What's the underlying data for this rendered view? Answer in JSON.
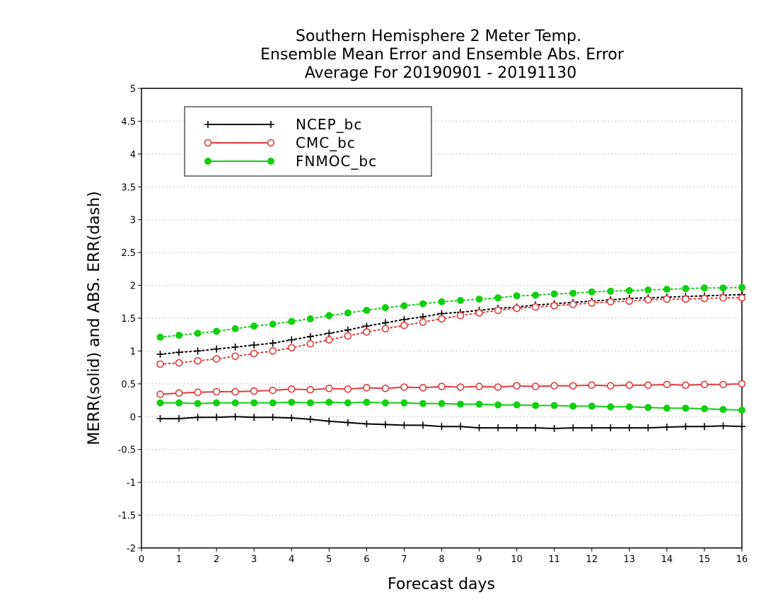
{
  "chart_data": {
    "type": "line",
    "title": [
      "Southern Hemisphere 2 Meter Temp.",
      "Ensemble Mean Error and Ensemble Abs. Error",
      "Average For 20190901 - 20191130"
    ],
    "xlabel": "Forecast days",
    "ylabel": "MERR(solid) and ABS. ERR(dash)",
    "xlim": [
      0,
      16
    ],
    "ylim": [
      -2,
      5
    ],
    "x_ticks": [
      "0",
      "1",
      "2",
      "3",
      "4",
      "5",
      "6",
      "7",
      "8",
      "9",
      "10",
      "11",
      "12",
      "13",
      "14",
      "15",
      "16"
    ],
    "y_ticks": [
      "-2",
      "-1.5",
      "-1",
      "-0.5",
      "0",
      "0.5",
      "1",
      "1.5",
      "2",
      "2.5",
      "3",
      "3.5",
      "4",
      "4.5",
      "5"
    ],
    "grid": "horizontal-dotted",
    "legend_position": "top-left",
    "x": [
      0.5,
      1,
      1.5,
      2,
      2.5,
      3,
      3.5,
      4,
      4.5,
      5,
      5.5,
      6,
      6.5,
      7,
      7.5,
      8,
      8.5,
      9,
      9.5,
      10,
      10.5,
      11,
      11.5,
      12,
      12.5,
      13,
      13.5,
      14,
      14.5,
      15,
      15.5,
      16
    ],
    "series": [
      {
        "name": "NCEP_bc",
        "color": "#000000",
        "marker": "plus",
        "merr": [
          -0.03,
          -0.03,
          -0.01,
          -0.01,
          0.0,
          -0.01,
          -0.01,
          -0.02,
          -0.04,
          -0.07,
          -0.09,
          -0.11,
          -0.12,
          -0.13,
          -0.13,
          -0.15,
          -0.15,
          -0.17,
          -0.17,
          -0.17,
          -0.17,
          -0.18,
          -0.17,
          -0.17,
          -0.17,
          -0.17,
          -0.17,
          -0.16,
          -0.15,
          -0.15,
          -0.14,
          -0.15
        ],
        "abs_err": [
          0.95,
          0.98,
          1.0,
          1.03,
          1.06,
          1.09,
          1.12,
          1.17,
          1.22,
          1.27,
          1.32,
          1.38,
          1.43,
          1.48,
          1.52,
          1.57,
          1.59,
          1.62,
          1.65,
          1.67,
          1.7,
          1.72,
          1.74,
          1.76,
          1.78,
          1.8,
          1.81,
          1.82,
          1.83,
          1.84,
          1.85,
          1.86
        ]
      },
      {
        "name": "CMC_bc",
        "color": "#e03c3c",
        "marker": "open-circle",
        "merr": [
          0.34,
          0.36,
          0.37,
          0.38,
          0.38,
          0.39,
          0.4,
          0.42,
          0.41,
          0.43,
          0.42,
          0.44,
          0.43,
          0.45,
          0.44,
          0.46,
          0.45,
          0.46,
          0.45,
          0.47,
          0.46,
          0.47,
          0.47,
          0.48,
          0.47,
          0.48,
          0.48,
          0.49,
          0.48,
          0.49,
          0.49,
          0.5
        ],
        "abs_err": [
          0.8,
          0.82,
          0.85,
          0.88,
          0.92,
          0.96,
          1.0,
          1.05,
          1.11,
          1.17,
          1.23,
          1.29,
          1.34,
          1.39,
          1.44,
          1.49,
          1.54,
          1.58,
          1.62,
          1.65,
          1.67,
          1.69,
          1.71,
          1.73,
          1.75,
          1.76,
          1.78,
          1.79,
          1.79,
          1.8,
          1.81,
          1.81
        ]
      },
      {
        "name": "FNMOC_bc",
        "color": "#10d010",
        "marker": "filled-circle",
        "merr": [
          0.21,
          0.21,
          0.2,
          0.21,
          0.21,
          0.21,
          0.21,
          0.22,
          0.21,
          0.22,
          0.21,
          0.22,
          0.21,
          0.21,
          0.2,
          0.2,
          0.19,
          0.19,
          0.18,
          0.18,
          0.17,
          0.17,
          0.16,
          0.16,
          0.15,
          0.15,
          0.14,
          0.13,
          0.13,
          0.12,
          0.11,
          0.1
        ],
        "abs_err": [
          1.21,
          1.24,
          1.27,
          1.3,
          1.34,
          1.38,
          1.41,
          1.45,
          1.49,
          1.54,
          1.58,
          1.62,
          1.66,
          1.69,
          1.72,
          1.75,
          1.77,
          1.79,
          1.81,
          1.84,
          1.85,
          1.87,
          1.88,
          1.9,
          1.91,
          1.92,
          1.93,
          1.94,
          1.95,
          1.96,
          1.96,
          1.97
        ]
      }
    ]
  }
}
